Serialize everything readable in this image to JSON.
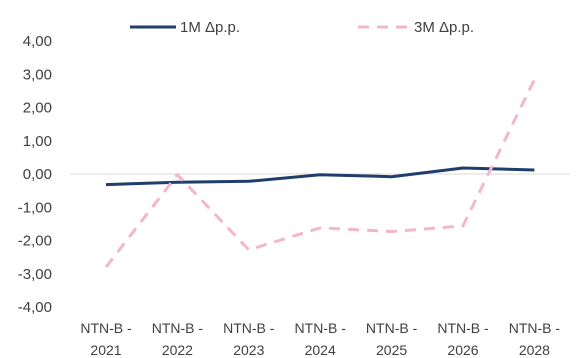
{
  "chart_data": {
    "type": "line",
    "categories": [
      [
        "NTN-B -",
        "2021"
      ],
      [
        "NTN-B -",
        "2022"
      ],
      [
        "NTN-B -",
        "2023"
      ],
      [
        "NTN-B -",
        "2024"
      ],
      [
        "NTN-B -",
        "2025"
      ],
      [
        "NTN-B -",
        "2026"
      ],
      [
        "NTN-B -",
        "2028"
      ]
    ],
    "ylim": [
      -4,
      4
    ],
    "yticks": [
      "4,00",
      "3,00",
      "2,00",
      "1,00",
      "0,00",
      "-1,00",
      "-2,00",
      "-3,00",
      "-4,00"
    ],
    "grid": false,
    "legend": "top",
    "series": [
      {
        "name": "1M Δp.p.",
        "color": "#1f3e6b",
        "style": "solid",
        "values": [
          -0.32,
          -0.25,
          -0.22,
          -0.02,
          -0.08,
          0.18,
          0.12
        ]
      },
      {
        "name": "3M Δp.p.",
        "color": "#f4b6cf",
        "style": "dashed",
        "values": [
          -2.8,
          -0.02,
          -2.28,
          -1.62,
          -1.73,
          -1.56,
          2.84
        ]
      }
    ]
  }
}
